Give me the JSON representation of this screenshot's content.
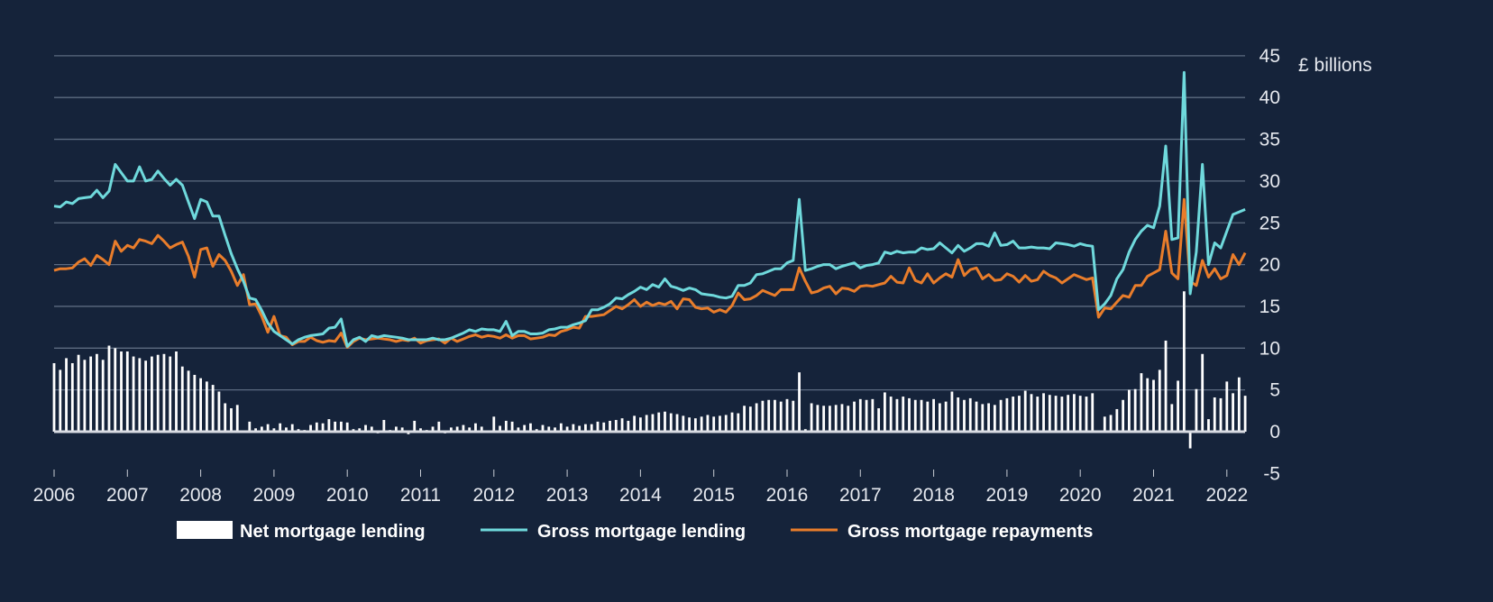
{
  "chart_data": {
    "type": "bar+line",
    "title": "",
    "xlabel": "",
    "ylabel": "£ billions",
    "ylim": [
      -5,
      45
    ],
    "yticks": [
      "-5",
      "0",
      "5",
      "10",
      "15",
      "20",
      "25",
      "30",
      "35",
      "40",
      "45"
    ],
    "xticks": [
      "2006",
      "2007",
      "2008",
      "2009",
      "2010",
      "2011",
      "2012",
      "2013",
      "2014",
      "2015",
      "2016",
      "2017",
      "2018",
      "2019",
      "2020",
      "2021",
      "2022"
    ],
    "x_start": "2006-01",
    "x_end": "2022-04",
    "frequency": "monthly",
    "grid": "horizontal",
    "legend_position": "bottom",
    "colors": {
      "background": "#15233a",
      "net": "#ffffff",
      "gross_lending": "#6fd9dc",
      "gross_repayments": "#e97d2b",
      "grid": "#5c6b80"
    },
    "series": [
      {
        "name": "Net mortgage lending",
        "kind": "bar",
        "values": [
          8.2,
          7.4,
          8.8,
          8.2,
          9.2,
          8.6,
          9,
          9.3,
          8.6,
          10.3,
          10,
          9.6,
          9.6,
          9,
          8.8,
          8.5,
          9,
          9.2,
          9.3,
          9,
          9.6,
          7.8,
          7.3,
          6.8,
          6.4,
          6,
          5.6,
          4.8,
          3.4,
          2.8,
          3.2,
          0,
          1.2,
          0.4,
          0.6,
          0.9,
          0.4,
          1,
          0.5,
          0.9,
          0.3,
          0.2,
          0.8,
          1.1,
          1,
          1.5,
          1.2,
          1.2,
          1.1,
          0.3,
          0.4,
          0.8,
          0.6,
          -0.2,
          1.4,
          0.2,
          0.6,
          0.5,
          -0.3,
          1.3,
          0.4,
          0.2,
          0.6,
          1.2,
          -0.2,
          0.5,
          0.6,
          0.8,
          0.5,
          1,
          0.6,
          0.1,
          1.8,
          0.7,
          1.3,
          1.2,
          0.5,
          0.8,
          1,
          0.3,
          0.8,
          0.6,
          0.5,
          1,
          0.6,
          0.9,
          0.7,
          0.9,
          0.9,
          1.2,
          1.1,
          1.3,
          1.4,
          1.6,
          1.3,
          1.9,
          1.7,
          2,
          2.1,
          2.3,
          2.4,
          2.2,
          2.1,
          1.9,
          1.7,
          1.6,
          1.8,
          2,
          1.8,
          1.9,
          2,
          2.3,
          2.2,
          3.1,
          3,
          3.4,
          3.7,
          3.8,
          3.8,
          3.6,
          3.9,
          3.7,
          7.1,
          0.3,
          3.4,
          3.2,
          3.1,
          3.1,
          3.2,
          3.3,
          3.1,
          3.6,
          3.9,
          3.8,
          3.9,
          2.8,
          4.7,
          4.2,
          3.9,
          4.2,
          4,
          3.8,
          3.8,
          3.6,
          3.9,
          3.4,
          3.6,
          4.8,
          4.1,
          3.8,
          4,
          3.6,
          3.3,
          3.4,
          3.2,
          3.8,
          4,
          4.2,
          4.3,
          4.9,
          4.5,
          4.2,
          4.6,
          4.4,
          4.3,
          4.2,
          4.4,
          4.5,
          4.3,
          4.2,
          4.6,
          0,
          1.8,
          2,
          2.7,
          3.8,
          5,
          5.1,
          7,
          6.4,
          6.2,
          7.4,
          10.9,
          3.3,
          6.1,
          16.8,
          -2,
          5.1,
          9.3,
          1.5,
          4.1,
          4,
          6,
          4.6,
          6.5,
          4.3
        ]
      },
      {
        "name": "Gross mortgage lending",
        "kind": "line",
        "values": [
          27,
          26.9,
          27.5,
          27.3,
          27.9,
          28,
          28.1,
          28.9,
          28,
          28.8,
          32,
          31,
          30,
          30,
          31.7,
          30,
          30.2,
          31.2,
          30.3,
          29.5,
          30.2,
          29.5,
          27.5,
          25.5,
          27.8,
          27.5,
          25.8,
          25.8,
          23.5,
          21.3,
          19.5,
          18,
          16,
          15.8,
          14.5,
          13,
          12,
          11.5,
          11,
          10.5,
          11,
          11.3,
          11.5,
          11.6,
          11.7,
          12.4,
          12.5,
          13.5,
          10.2,
          11,
          11.3,
          10.8,
          11.5,
          11.3,
          11.5,
          11.4,
          11.3,
          11.2,
          11,
          11,
          11,
          11,
          11.2,
          11,
          11,
          11.2,
          11.5,
          11.8,
          12.2,
          12,
          12.3,
          12.2,
          12.2,
          12,
          13.2,
          11.5,
          12,
          12,
          11.7,
          11.7,
          11.8,
          12.2,
          12.3,
          12.5,
          12.5,
          12.8,
          13,
          13.3,
          14.6,
          14.6,
          14.9,
          15.3,
          16,
          15.9,
          16.4,
          16.8,
          17.3,
          17,
          17.6,
          17.3,
          18.3,
          17.4,
          17.2,
          16.9,
          17.2,
          17,
          16.5,
          16.4,
          16.3,
          16.1,
          16,
          16.2,
          17.5,
          17.5,
          17.8,
          18.8,
          18.9,
          19.2,
          19.5,
          19.5,
          20.2,
          20.5,
          27.8,
          19.3,
          19.5,
          19.8,
          20,
          20,
          19.5,
          19.8,
          20,
          20.2,
          19.6,
          19.9,
          20,
          20.2,
          21.5,
          21.3,
          21.6,
          21.4,
          21.5,
          21.5,
          22,
          21.8,
          21.9,
          22.6,
          22,
          21.4,
          22.3,
          21.6,
          22,
          22.5,
          22.5,
          22.2,
          23.8,
          22.3,
          22.4,
          22.8,
          22,
          22,
          22.1,
          22,
          22,
          21.9,
          22.6,
          22.5,
          22.4,
          22.2,
          22.5,
          22.3,
          22.2,
          14.6,
          15.3,
          16.3,
          18.3,
          19.4,
          21.5,
          23,
          24,
          24.7,
          24.4,
          27,
          34.2,
          23,
          23.2,
          43,
          16.5,
          21.5,
          32,
          20,
          22.6,
          22,
          24,
          26,
          26.3,
          26.6
        ]
      },
      {
        "name": "Gross mortgage repayments",
        "kind": "line",
        "values": [
          19.3,
          19.5,
          19.5,
          19.6,
          20.3,
          20.7,
          19.9,
          21.1,
          20.6,
          20,
          22.8,
          21.6,
          22.3,
          22,
          23,
          22.8,
          22.5,
          23.5,
          22.8,
          22,
          22.4,
          22.7,
          21,
          18.5,
          21.8,
          22,
          19.8,
          21.2,
          20.5,
          19.2,
          17.5,
          18.8,
          15.2,
          15.3,
          13.8,
          11.9,
          13.8,
          11.5,
          11.3,
          10.4,
          10.8,
          10.8,
          11.3,
          10.9,
          10.7,
          10.9,
          10.8,
          11.8,
          10.1,
          10.8,
          11.2,
          11,
          11.1,
          11.2,
          11.1,
          11,
          10.8,
          11,
          10.9,
          11.2,
          10.6,
          10.9,
          11,
          11.1,
          10.6,
          11.2,
          10.8,
          11.1,
          11.4,
          11.6,
          11.3,
          11.5,
          11.4,
          11.2,
          11.6,
          11.2,
          11.5,
          11.5,
          11.1,
          11.2,
          11.3,
          11.6,
          11.5,
          12,
          12.2,
          12.5,
          12.4,
          13.8,
          13.8,
          13.9,
          14,
          14.5,
          15,
          14.7,
          15.2,
          15.8,
          15,
          15.5,
          15.1,
          15.4,
          15.2,
          15.6,
          14.7,
          15.9,
          15.8,
          14.9,
          14.7,
          14.8,
          14.3,
          14.6,
          14.3,
          15.1,
          16.6,
          15.8,
          15.9,
          16.3,
          16.9,
          16.6,
          16.3,
          17,
          17,
          17,
          19.6,
          18,
          16.6,
          16.8,
          17.2,
          17.4,
          16.5,
          17.2,
          17.1,
          16.8,
          17.4,
          17.5,
          17.4,
          17.6,
          17.8,
          18.6,
          17.9,
          17.8,
          19.6,
          18.1,
          17.8,
          18.9,
          17.8,
          18.4,
          18.9,
          18.5,
          20.6,
          18.7,
          19.4,
          19.6,
          18.3,
          18.8,
          18.1,
          18.2,
          18.9,
          18.6,
          17.9,
          18.7,
          18,
          18.2,
          19.2,
          18.7,
          18.4,
          17.8,
          18.3,
          18.8,
          18.5,
          18.2,
          18.4,
          13.7,
          14.8,
          14.7,
          15.5,
          16.3,
          16.1,
          17.5,
          17.5,
          18.6,
          19,
          19.4,
          24,
          19,
          18.3,
          27.8,
          18,
          17.5,
          20.5,
          18.5,
          19.5,
          18.3,
          18.7,
          21.2,
          20,
          21.4
        ]
      }
    ]
  }
}
